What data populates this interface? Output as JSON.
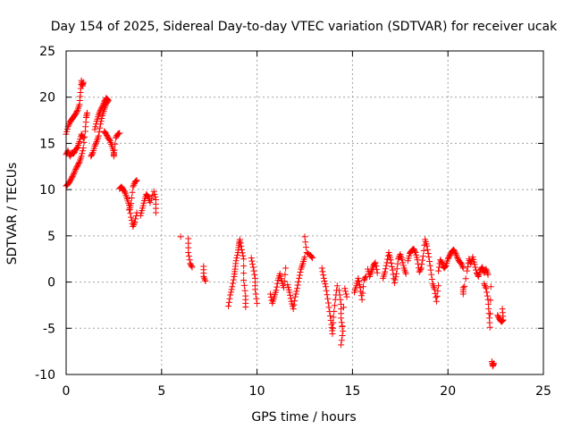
{
  "chart_data": {
    "type": "scatter",
    "title": "Day 154 of 2025, Sidereal Day-to-day VTEC variation (SDTVAR) for receiver ucak",
    "xlabel": "GPS time / hours",
    "ylabel": "SDTVAR / TECUs",
    "xlim": [
      0,
      25
    ],
    "ylim": [
      -10,
      25
    ],
    "xticks": [
      0,
      5,
      10,
      15,
      20,
      25
    ],
    "yticks": [
      -10,
      -5,
      0,
      5,
      10,
      15,
      20,
      25
    ],
    "grid": true,
    "marker": "+",
    "color": "#ff0000",
    "series": [
      {
        "name": "SDTVAR",
        "segments": [
          [
            [
              0.0,
              13.8
            ],
            [
              0.1,
              14.2
            ],
            [
              0.2,
              13.6
            ],
            [
              0.3,
              14.0
            ],
            [
              0.4,
              13.9
            ],
            [
              0.5,
              14.3
            ],
            [
              0.6,
              14.6
            ],
            [
              0.7,
              15.2
            ],
            [
              0.8,
              16.0
            ],
            [
              0.9,
              15.6
            ]
          ],
          [
            [
              0.0,
              16.0
            ],
            [
              0.1,
              16.8
            ],
            [
              0.2,
              17.3
            ],
            [
              0.3,
              17.6
            ],
            [
              0.4,
              17.9
            ],
            [
              0.5,
              18.2
            ],
            [
              0.6,
              18.6
            ],
            [
              0.7,
              19.2
            ],
            [
              0.75,
              20.5
            ],
            [
              0.8,
              21.8
            ],
            [
              0.85,
              21.2
            ],
            [
              0.9,
              21.6
            ]
          ],
          [
            [
              0.0,
              10.4
            ],
            [
              0.1,
              10.6
            ],
            [
              0.2,
              10.9
            ],
            [
              0.3,
              11.3
            ],
            [
              0.4,
              11.7
            ],
            [
              0.5,
              12.2
            ],
            [
              0.6,
              12.6
            ],
            [
              0.7,
              13.0
            ],
            [
              0.8,
              13.6
            ],
            [
              0.9,
              14.5
            ],
            [
              1.0,
              16.3
            ],
            [
              1.05,
              17.8
            ],
            [
              1.1,
              18.3
            ]
          ],
          [
            [
              1.3,
              13.6
            ],
            [
              1.4,
              14.0
            ],
            [
              1.5,
              14.7
            ],
            [
              1.6,
              15.2
            ],
            [
              1.7,
              15.8
            ],
            [
              1.8,
              17.1
            ],
            [
              1.9,
              18.0
            ],
            [
              2.0,
              18.7
            ],
            [
              2.1,
              19.3
            ],
            [
              2.2,
              19.6
            ]
          ],
          [
            [
              1.5,
              16.5
            ],
            [
              1.6,
              17.4
            ],
            [
              1.7,
              18.1
            ],
            [
              1.8,
              18.6
            ],
            [
              1.9,
              19.0
            ],
            [
              2.0,
              19.5
            ],
            [
              2.1,
              19.9
            ],
            [
              2.2,
              19.7
            ]
          ],
          [
            [
              2.0,
              16.3
            ],
            [
              2.1,
              16.0
            ],
            [
              2.2,
              15.6
            ],
            [
              2.3,
              15.3
            ],
            [
              2.4,
              14.7
            ],
            [
              2.5,
              14.0
            ],
            [
              2.5,
              13.6
            ],
            [
              2.6,
              15.6
            ],
            [
              2.7,
              16.0
            ],
            [
              2.8,
              16.1
            ]
          ],
          [
            [
              2.8,
              10.1
            ],
            [
              2.9,
              10.3
            ],
            [
              3.0,
              10.0
            ],
            [
              3.1,
              9.6
            ],
            [
              3.2,
              9.0
            ],
            [
              3.3,
              8.3
            ],
            [
              3.4,
              7.0
            ],
            [
              3.5,
              6.0
            ],
            [
              3.6,
              6.5
            ],
            [
              3.7,
              7.5
            ]
          ],
          [
            [
              3.3,
              7.8
            ],
            [
              3.4,
              8.5
            ],
            [
              3.5,
              10.3
            ],
            [
              3.6,
              10.8
            ],
            [
              3.7,
              11.0
            ]
          ],
          [
            [
              3.9,
              7.2
            ],
            [
              4.0,
              8.0
            ],
            [
              4.1,
              8.8
            ],
            [
              4.2,
              9.5
            ],
            [
              4.3,
              9.2
            ],
            [
              4.4,
              8.6
            ],
            [
              4.6,
              9.8
            ],
            [
              4.7,
              8.9
            ],
            [
              4.7,
              7.5
            ]
          ],
          [
            [
              6.0,
              4.9
            ]
          ],
          [
            [
              6.4,
              4.7
            ],
            [
              6.4,
              3.2
            ],
            [
              6.5,
              2.0
            ],
            [
              6.6,
              1.6
            ]
          ],
          [
            [
              7.2,
              1.7
            ],
            [
              7.2,
              0.6
            ],
            [
              7.3,
              0.1
            ]
          ],
          [
            [
              8.5,
              -2.6
            ],
            [
              8.6,
              -1.4
            ],
            [
              8.7,
              -0.5
            ],
            [
              8.8,
              0.6
            ],
            [
              8.85,
              1.4
            ],
            [
              8.9,
              2.3
            ],
            [
              9.0,
              3.2
            ],
            [
              9.05,
              4.0
            ],
            [
              9.1,
              4.6
            ],
            [
              9.2,
              3.5
            ],
            [
              9.3,
              2.5
            ],
            [
              9.3,
              0.2
            ],
            [
              9.4,
              -1.5
            ],
            [
              9.4,
              -2.7
            ]
          ],
          [
            [
              9.7,
              2.6
            ],
            [
              9.8,
              1.6
            ],
            [
              9.9,
              0.4
            ],
            [
              9.9,
              -0.8
            ],
            [
              10.0,
              -2.3
            ]
          ],
          [
            [
              10.7,
              -1.3
            ],
            [
              10.8,
              -2.3
            ],
            [
              10.9,
              -1.6
            ],
            [
              11.0,
              -0.9
            ],
            [
              11.1,
              0.2
            ],
            [
              11.2,
              0.9
            ],
            [
              11.3,
              0.1
            ],
            [
              11.4,
              -0.6
            ],
            [
              11.5,
              1.5
            ]
          ],
          [
            [
              11.6,
              -0.3
            ],
            [
              11.7,
              -1.1
            ],
            [
              11.8,
              -2.1
            ],
            [
              11.9,
              -2.9
            ],
            [
              12.0,
              -1.6
            ],
            [
              12.1,
              -0.7
            ],
            [
              12.2,
              0.4
            ],
            [
              12.3,
              1.4
            ],
            [
              12.4,
              2.0
            ],
            [
              12.5,
              2.7
            ]
          ],
          [
            [
              12.5,
              4.9
            ],
            [
              12.6,
              3.2
            ],
            [
              12.8,
              2.9
            ],
            [
              12.9,
              2.6
            ]
          ],
          [
            [
              13.4,
              1.5
            ],
            [
              13.5,
              0.4
            ],
            [
              13.6,
              -0.5
            ],
            [
              13.7,
              -1.8
            ],
            [
              13.8,
              -3.2
            ],
            [
              13.9,
              -4.6
            ],
            [
              13.95,
              -5.6
            ],
            [
              14.0,
              -3.8
            ],
            [
              14.1,
              -1.9
            ],
            [
              14.2,
              -0.4
            ]
          ],
          [
            [
              14.3,
              -0.9
            ],
            [
              14.4,
              -2.4
            ],
            [
              14.4,
              -3.9
            ],
            [
              14.5,
              -5.3
            ],
            [
              14.4,
              -6.8
            ],
            [
              14.6,
              -0.7
            ],
            [
              14.7,
              -1.6
            ]
          ],
          [
            [
              15.1,
              -1.1
            ],
            [
              15.2,
              -0.4
            ],
            [
              15.3,
              0.4
            ],
            [
              15.4,
              -0.6
            ],
            [
              15.5,
              -1.9
            ],
            [
              15.6,
              0.2
            ],
            [
              15.7,
              0.6
            ]
          ],
          [
            [
              15.8,
              1.4
            ],
            [
              15.9,
              0.6
            ],
            [
              16.0,
              1.2
            ],
            [
              16.1,
              1.8
            ],
            [
              16.2,
              2.1
            ],
            [
              16.3,
              1.0
            ]
          ],
          [
            [
              16.6,
              0.4
            ],
            [
              16.7,
              1.1
            ],
            [
              16.8,
              2.1
            ],
            [
              16.9,
              3.2
            ],
            [
              17.0,
              2.4
            ],
            [
              17.1,
              1.3
            ],
            [
              17.2,
              -0.1
            ],
            [
              17.3,
              0.9
            ],
            [
              17.4,
              2.5
            ],
            [
              17.5,
              3.0
            ],
            [
              17.6,
              2.4
            ],
            [
              17.7,
              1.5
            ],
            [
              17.8,
              0.9
            ]
          ],
          [
            [
              17.9,
              2.3
            ],
            [
              18.0,
              3.1
            ],
            [
              18.1,
              3.4
            ],
            [
              18.2,
              3.6
            ],
            [
              18.3,
              3.2
            ],
            [
              18.4,
              2.4
            ],
            [
              18.5,
              1.1
            ],
            [
              18.6,
              1.5
            ],
            [
              18.7,
              2.8
            ],
            [
              18.8,
              4.6
            ],
            [
              18.9,
              3.9
            ],
            [
              19.0,
              2.7
            ],
            [
              19.1,
              1.3
            ],
            [
              19.2,
              -0.2
            ],
            [
              19.3,
              -0.8
            ],
            [
              19.4,
              -2.1
            ],
            [
              19.5,
              -0.4
            ]
          ],
          [
            [
              19.5,
              1.2
            ],
            [
              19.6,
              2.4
            ],
            [
              19.7,
              2.0
            ],
            [
              19.8,
              1.5
            ],
            [
              19.9,
              1.8
            ],
            [
              20.0,
              2.5
            ],
            [
              20.1,
              2.9
            ],
            [
              20.2,
              3.3
            ],
            [
              20.3,
              3.5
            ],
            [
              20.4,
              3.1
            ],
            [
              20.5,
              2.6
            ],
            [
              20.6,
              2.2
            ],
            [
              20.7,
              2.0
            ],
            [
              20.8,
              1.5
            ]
          ],
          [
            [
              20.8,
              -0.6
            ],
            [
              20.8,
              -1.3
            ],
            [
              21.0,
              1.2
            ],
            [
              21.1,
              2.5
            ],
            [
              21.2,
              2.0
            ],
            [
              21.3,
              2.7
            ],
            [
              21.4,
              1.9
            ],
            [
              21.5,
              1.0
            ],
            [
              21.6,
              0.6
            ],
            [
              21.7,
              1.3
            ],
            [
              21.8,
              1.6
            ],
            [
              21.9,
              1.0
            ],
            [
              22.0,
              1.4
            ],
            [
              22.1,
              0.8
            ]
          ],
          [
            [
              21.9,
              -0.2
            ],
            [
              22.0,
              -0.7
            ],
            [
              22.1,
              -1.9
            ],
            [
              22.15,
              -3.4
            ],
            [
              22.2,
              -4.9
            ],
            [
              22.25,
              -0.5
            ]
          ],
          [
            [
              22.3,
              -8.6
            ],
            [
              22.35,
              -9.1
            ],
            [
              22.4,
              -8.8
            ]
          ],
          [
            [
              22.6,
              -3.6
            ],
            [
              22.7,
              -4.0
            ],
            [
              22.8,
              -4.3
            ],
            [
              22.9,
              -4.1
            ],
            [
              22.85,
              -2.9
            ]
          ]
        ]
      }
    ]
  }
}
